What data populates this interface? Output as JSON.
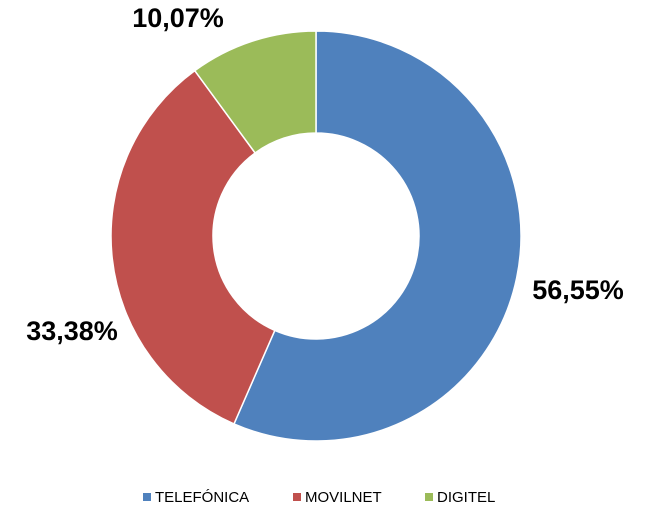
{
  "chart_data": {
    "type": "donut",
    "categories": [
      "TELEFÓNICA",
      "MOVILNET",
      "DIGITEL"
    ],
    "values": [
      56.55,
      33.38,
      10.07
    ],
    "value_labels": [
      "56,55%",
      "33,38%",
      "10,07%"
    ],
    "colors": [
      "#4f81bd",
      "#c0504d",
      "#9bbb59"
    ],
    "legend": "bottom"
  }
}
